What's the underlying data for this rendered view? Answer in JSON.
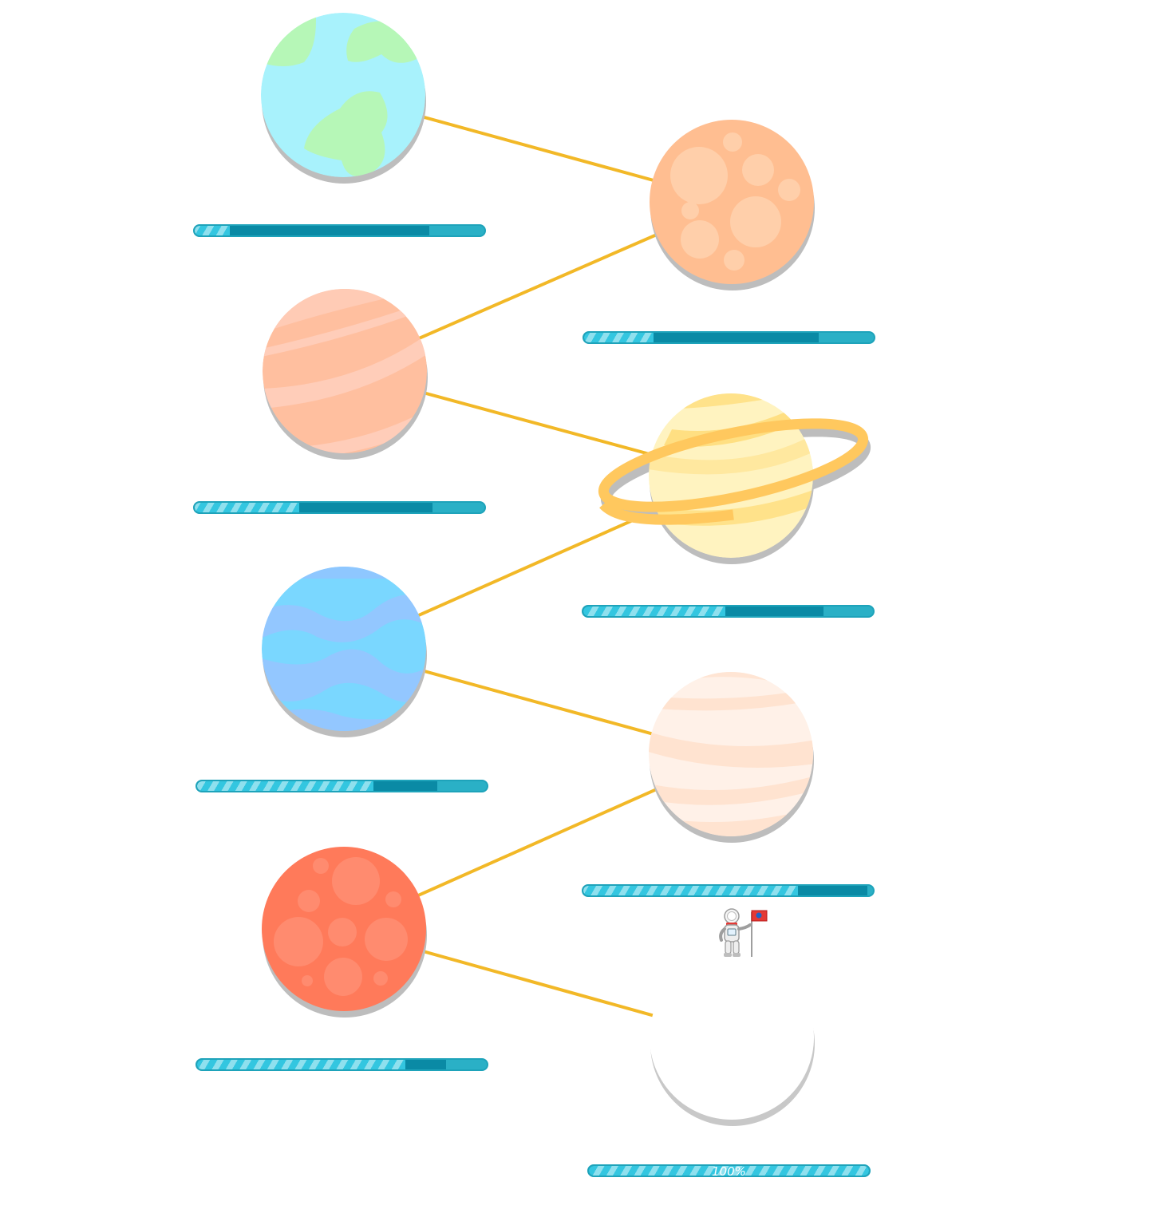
{
  "game": {
    "path_color": "#f2b827",
    "progress_colors": {
      "fill": "#33c6e0",
      "mid": "#0a8aa5",
      "track": "#2ab0c6"
    },
    "levels": [
      {
        "name": "planet-earth",
        "icon": "earth-planet-icon",
        "progress": 0.12,
        "secondary": 0.81
      },
      {
        "name": "planet-orange-cratered",
        "icon": "orange-cratered-planet-icon",
        "progress": 0.24,
        "secondary": 0.81
      },
      {
        "name": "planet-peach-striped",
        "icon": "peach-striped-planet-icon",
        "progress": 0.36,
        "secondary": 0.82
      },
      {
        "name": "planet-yellow-ringed",
        "icon": "yellow-ringed-planet-icon",
        "progress": 0.49,
        "secondary": 0.83
      },
      {
        "name": "planet-blue-striped",
        "icon": "blue-striped-planet-icon",
        "progress": 0.61,
        "secondary": 0.83
      },
      {
        "name": "planet-cream-striped",
        "icon": "cream-striped-planet-icon",
        "progress": 0.74,
        "secondary": 0.98
      },
      {
        "name": "planet-red-cratered",
        "icon": "red-cratered-planet-icon",
        "progress": 0.72,
        "secondary": 0.86
      },
      {
        "name": "planet-white-unlocked",
        "icon": "white-planet-icon",
        "progress": 1.0,
        "secondary": 1.0,
        "label": "100%"
      }
    ],
    "current_marker": "astronaut-with-flag-icon"
  }
}
